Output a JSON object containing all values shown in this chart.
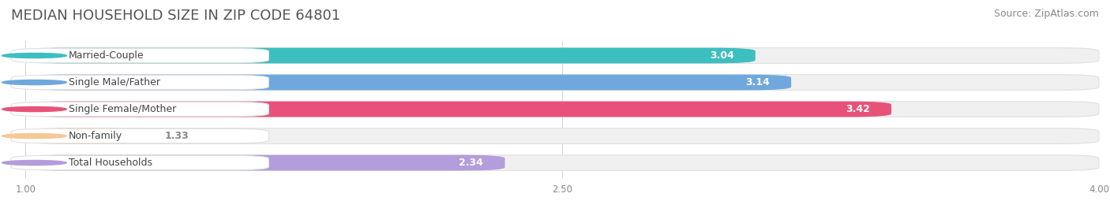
{
  "title": "MEDIAN HOUSEHOLD SIZE IN ZIP CODE 64801",
  "source": "Source: ZipAtlas.com",
  "categories": [
    "Married-Couple",
    "Single Male/Father",
    "Single Female/Mother",
    "Non-family",
    "Total Households"
  ],
  "values": [
    3.04,
    3.14,
    3.42,
    1.33,
    2.34
  ],
  "bar_colors": [
    "#3dbfbf",
    "#6fa8dc",
    "#e8527a",
    "#f5c897",
    "#b39ddb"
  ],
  "label_bg_colors": [
    "#3dbfbf",
    "#6fa8dc",
    "#e8527a",
    "#f0b87a",
    "#9b86c8"
  ],
  "xlim_min": 1.0,
  "xlim_max": 4.0,
  "xticks": [
    1.0,
    2.5,
    4.0
  ],
  "xticklabels": [
    "1.00",
    "2.50",
    "4.00"
  ],
  "title_fontsize": 13,
  "source_fontsize": 9,
  "label_fontsize": 9,
  "value_fontsize": 9,
  "background_color": "#ffffff",
  "bar_bg_color": "#f0f0f0",
  "bar_bg_border": "#e0e0e0",
  "text_color": "#555555",
  "label_text_color": "#444444",
  "value_in_bar_color": "#ffffff",
  "value_outside_color": "#888888"
}
